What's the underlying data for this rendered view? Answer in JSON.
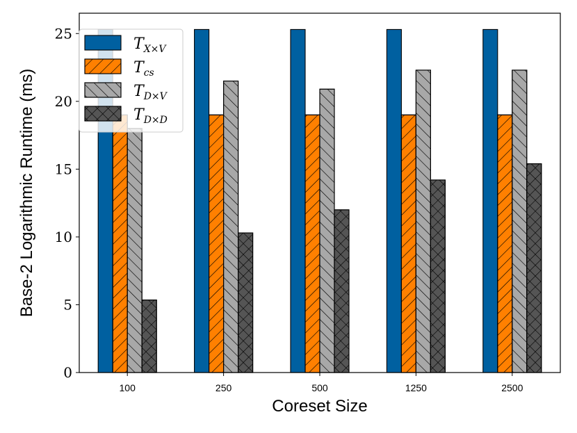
{
  "chart_data": {
    "type": "bar",
    "categories": [
      "100",
      "250",
      "500",
      "1250",
      "2500"
    ],
    "series": [
      {
        "name": "T_{X×V}",
        "legend_main": "T",
        "legend_sub": "X×V",
        "color": "#0060a0",
        "hatch": "none",
        "values": [
          25.3,
          25.3,
          25.3,
          25.3,
          25.3
        ]
      },
      {
        "name": "T_{cs}",
        "legend_main": "T",
        "legend_sub": "cs",
        "color": "#ff8000",
        "hatch": "forward-diagonal",
        "values": [
          19.0,
          19.0,
          19.0,
          19.0,
          19.0
        ]
      },
      {
        "name": "T_{D×V}",
        "legend_main": "T",
        "legend_sub": "D×V",
        "color": "#a8a8a8",
        "hatch": "back-diagonal",
        "values": [
          18.0,
          21.5,
          20.9,
          22.3,
          22.3
        ]
      },
      {
        "name": "T_{D×D}",
        "legend_main": "T",
        "legend_sub": "D×D",
        "color": "#555555",
        "hatch": "cross",
        "values": [
          5.35,
          10.3,
          12.0,
          14.2,
          15.4
        ]
      }
    ],
    "xlabel": "Coreset Size",
    "ylabel": "Base-2 Logarithmic Runtime (ms)",
    "ylim": [
      0,
      26.5
    ],
    "yticks": [
      0,
      5,
      10,
      15,
      20,
      25
    ],
    "grid": false,
    "legend_position": "top-left"
  }
}
